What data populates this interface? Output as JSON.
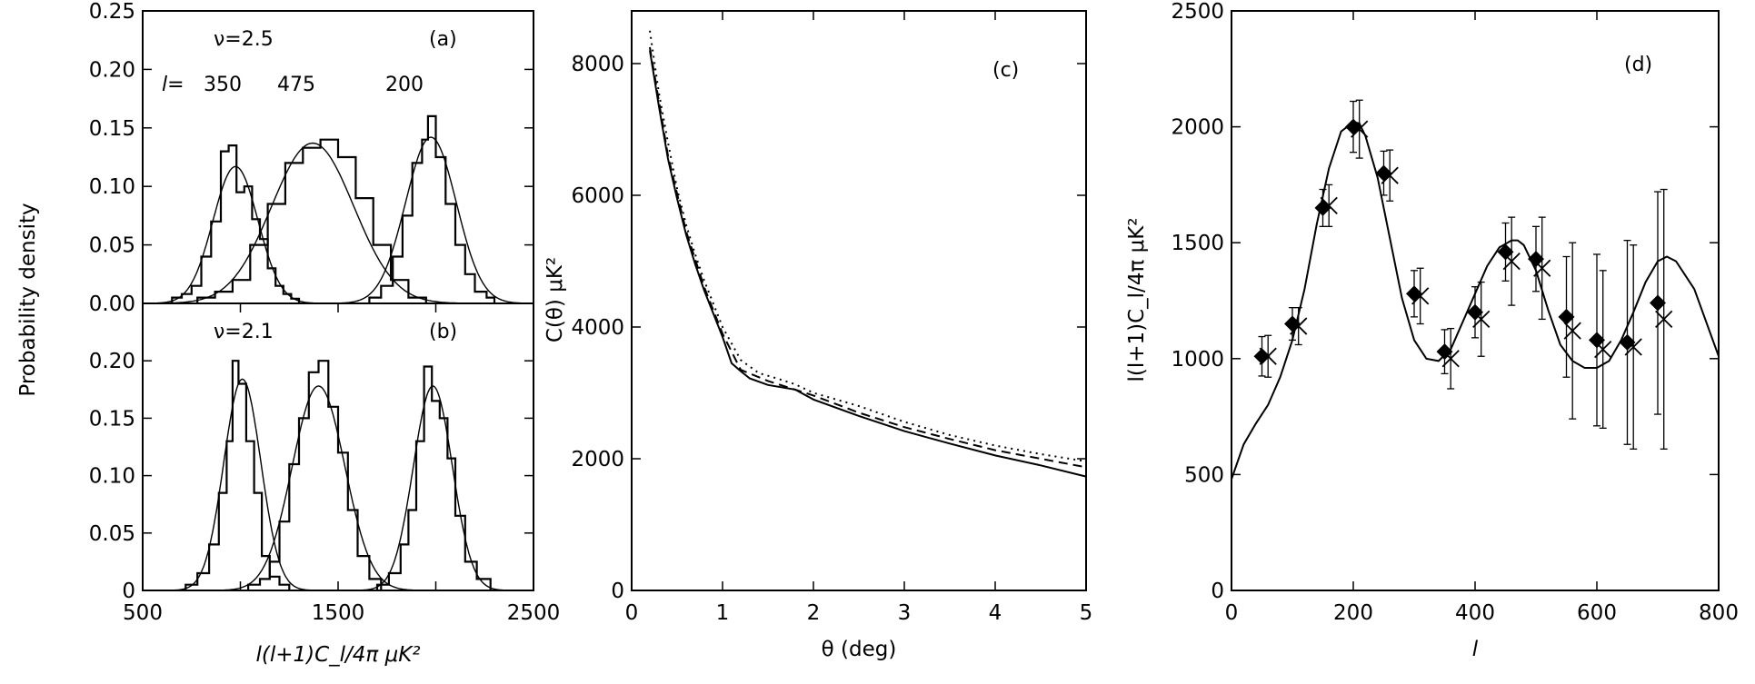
{
  "chart_data": [
    {
      "panel": "(a)",
      "type": "histogram",
      "annotations": {
        "nu": "ν=2.5",
        "l_prefix": "l=",
        "l_labels": [
          "350",
          "475",
          "200"
        ]
      },
      "ylabel": "Probability density",
      "xlim": [
        500,
        2500
      ],
      "ylim": [
        0,
        0.25
      ],
      "yticks": [
        "0.00",
        "0.05",
        "0.10",
        "0.15",
        "0.20",
        "0.25"
      ],
      "series": [
        {
          "name": "350",
          "mean": 975,
          "sigma": 115,
          "peak": 0.117,
          "bins": [
            [
              650,
              0.005
            ],
            [
              700,
              0.008
            ],
            [
              750,
              0.015
            ],
            [
              800,
              0.04
            ],
            [
              850,
              0.07
            ],
            [
              900,
              0.13
            ],
            [
              940,
              0.135
            ],
            [
              980,
              0.095
            ],
            [
              1020,
              0.1
            ],
            [
              1060,
              0.072
            ],
            [
              1100,
              0.055
            ],
            [
              1140,
              0.03
            ],
            [
              1180,
              0.015
            ],
            [
              1220,
              0.008
            ],
            [
              1260,
              0.004
            ],
            [
              1300,
              0.0
            ]
          ]
        },
        {
          "name": "475",
          "mean": 1370,
          "sigma": 210,
          "peak": 0.137,
          "bins": [
            [
              780,
              0.005
            ],
            [
              870,
              0.01
            ],
            [
              960,
              0.02
            ],
            [
              1050,
              0.05
            ],
            [
              1140,
              0.085
            ],
            [
              1230,
              0.12
            ],
            [
              1320,
              0.133
            ],
            [
              1410,
              0.14
            ],
            [
              1500,
              0.125
            ],
            [
              1590,
              0.09
            ],
            [
              1680,
              0.05
            ],
            [
              1770,
              0.02
            ],
            [
              1860,
              0.005
            ],
            [
              1950,
              0.0
            ]
          ]
        },
        {
          "name": "200",
          "mean": 1975,
          "sigma": 130,
          "peak": 0.142,
          "bins": [
            [
              1660,
              0.005
            ],
            [
              1720,
              0.015
            ],
            [
              1780,
              0.04
            ],
            [
              1830,
              0.075
            ],
            [
              1880,
              0.12
            ],
            [
              1930,
              0.14
            ],
            [
              1960,
              0.16
            ],
            [
              2000,
              0.125
            ],
            [
              2050,
              0.085
            ],
            [
              2100,
              0.05
            ],
            [
              2150,
              0.025
            ],
            [
              2200,
              0.01
            ],
            [
              2260,
              0.005
            ],
            [
              2300,
              0.0
            ]
          ]
        }
      ]
    },
    {
      "panel": "(b)",
      "type": "histogram",
      "annotations": {
        "nu": "ν=2.1"
      },
      "xlabel": "l(l+1)C_l/4π  μK²",
      "xlim": [
        500,
        2500
      ],
      "ylim": [
        0,
        0.25
      ],
      "xticks": [
        "500",
        "1500",
        "2500"
      ],
      "yticks": [
        "0",
        "0.05",
        "0.10",
        "0.15",
        "0.20"
      ],
      "series": [
        {
          "name": "350",
          "mean": 1010,
          "sigma": 95,
          "peak": 0.184,
          "bins": [
            [
              720,
              0.005
            ],
            [
              780,
              0.015
            ],
            [
              840,
              0.04
            ],
            [
              890,
              0.085
            ],
            [
              930,
              0.13
            ],
            [
              960,
              0.2
            ],
            [
              990,
              0.18
            ],
            [
              1030,
              0.13
            ],
            [
              1070,
              0.085
            ],
            [
              1110,
              0.03
            ],
            [
              1150,
              0.012
            ],
            [
              1200,
              0.005
            ],
            [
              1250,
              0.0
            ]
          ]
        },
        {
          "name": "475",
          "mean": 1400,
          "sigma": 135,
          "peak": 0.178,
          "bins": [
            [
              1040,
              0.005
            ],
            [
              1100,
              0.01
            ],
            [
              1150,
              0.025
            ],
            [
              1200,
              0.06
            ],
            [
              1250,
              0.11
            ],
            [
              1300,
              0.15
            ],
            [
              1350,
              0.19
            ],
            [
              1400,
              0.2
            ],
            [
              1450,
              0.16
            ],
            [
              1500,
              0.12
            ],
            [
              1550,
              0.07
            ],
            [
              1600,
              0.03
            ],
            [
              1660,
              0.01
            ],
            [
              1720,
              0.0
            ]
          ]
        },
        {
          "name": "200",
          "mean": 1985,
          "sigma": 100,
          "peak": 0.178,
          "bins": [
            [
              1700,
              0.005
            ],
            [
              1760,
              0.015
            ],
            [
              1820,
              0.04
            ],
            [
              1860,
              0.07
            ],
            [
              1900,
              0.13
            ],
            [
              1940,
              0.195
            ],
            [
              1980,
              0.165
            ],
            [
              2020,
              0.15
            ],
            [
              2060,
              0.115
            ],
            [
              2100,
              0.065
            ],
            [
              2150,
              0.025
            ],
            [
              2210,
              0.01
            ],
            [
              2280,
              0.0
            ]
          ]
        }
      ]
    },
    {
      "panel": "(c)",
      "type": "line",
      "xlabel": "θ (deg)",
      "ylabel": "C(θ)  μK²",
      "xlim": [
        0,
        5
      ],
      "ylim": [
        0,
        8800
      ],
      "xticks": [
        "0",
        "1",
        "2",
        "3",
        "4",
        "5"
      ],
      "yticks": [
        "0",
        "2000",
        "4000",
        "6000",
        "8000"
      ],
      "series": [
        {
          "name": "solid",
          "style": "solid",
          "x": [
            0.2,
            0.3,
            0.4,
            0.5,
            0.6,
            0.7,
            0.8,
            0.9,
            1.0,
            1.1,
            1.2,
            1.3,
            1.5,
            1.8,
            2.0,
            2.5,
            3.0,
            3.5,
            4.0,
            4.5,
            5.0
          ],
          "y": [
            8200,
            7350,
            6550,
            5950,
            5400,
            4950,
            4550,
            4200,
            3850,
            3450,
            3330,
            3220,
            3120,
            3050,
            2900,
            2650,
            2420,
            2230,
            2050,
            1900,
            1730
          ]
        },
        {
          "name": "dashed",
          "style": "dashed",
          "x": [
            0.2,
            0.4,
            0.6,
            0.8,
            1.0,
            1.2,
            1.5,
            2.0,
            2.5,
            3.0,
            3.5,
            4.0,
            4.5,
            5.0
          ],
          "y": [
            8250,
            6600,
            5450,
            4600,
            3900,
            3350,
            3180,
            2960,
            2700,
            2480,
            2300,
            2130,
            2000,
            1870
          ]
        },
        {
          "name": "dotted",
          "style": "dotted",
          "x": [
            0.2,
            0.3,
            0.4,
            0.5,
            0.6,
            0.7,
            0.8,
            0.9,
            1.0,
            1.2,
            1.4,
            1.6,
            1.8,
            2.0,
            2.5,
            3.0,
            3.5,
            4.0,
            4.5,
            5.0
          ],
          "y": [
            8500,
            7550,
            6800,
            6100,
            5550,
            5100,
            4700,
            4350,
            4000,
            3500,
            3300,
            3220,
            3130,
            3000,
            2800,
            2560,
            2360,
            2200,
            2070,
            1960
          ]
        }
      ]
    },
    {
      "panel": "(d)",
      "type": "scatter",
      "xlabel": "l",
      "ylabel": "l(l+1)C_l/4π  μK²",
      "xlim": [
        0,
        800
      ],
      "ylim": [
        0,
        2500
      ],
      "xticks": [
        "0",
        "200",
        "400",
        "600",
        "800"
      ],
      "yticks": [
        "0",
        "500",
        "1000",
        "1500",
        "2000",
        "2500"
      ],
      "curve": {
        "l": [
          0,
          20,
          40,
          60,
          80,
          100,
          120,
          140,
          160,
          180,
          200,
          210,
          220,
          240,
          260,
          280,
          300,
          320,
          340,
          360,
          380,
          400,
          420,
          440,
          460,
          470,
          480,
          500,
          520,
          540,
          560,
          580,
          600,
          620,
          640,
          660,
          680,
          700,
          715,
          730,
          760,
          800
        ],
        "value": [
          480,
          630,
          720,
          800,
          920,
          1080,
          1300,
          1580,
          1820,
          1980,
          2020,
          2015,
          1960,
          1780,
          1520,
          1260,
          1080,
          1000,
          990,
          1040,
          1160,
          1280,
          1400,
          1480,
          1510,
          1510,
          1490,
          1380,
          1210,
          1060,
          990,
          960,
          960,
          990,
          1080,
          1200,
          1330,
          1420,
          1440,
          1420,
          1300,
          1010
        ]
      },
      "diamonds": [
        {
          "l": 50,
          "value": 1010,
          "err": 85
        },
        {
          "l": 100,
          "value": 1150,
          "err": 70
        },
        {
          "l": 150,
          "value": 1650,
          "err": 80
        },
        {
          "l": 200,
          "value": 2000,
          "err": 110
        },
        {
          "l": 250,
          "value": 1800,
          "err": 95
        },
        {
          "l": 300,
          "value": 1280,
          "err": 100
        },
        {
          "l": 350,
          "value": 1030,
          "err": 95
        },
        {
          "l": 400,
          "value": 1200,
          "err": 110
        },
        {
          "l": 450,
          "value": 1460,
          "err": 125
        },
        {
          "l": 500,
          "value": 1430,
          "err": 140
        },
        {
          "l": 550,
          "value": 1180,
          "err": 260
        },
        {
          "l": 600,
          "value": 1080,
          "err": 370
        },
        {
          "l": 650,
          "value": 1070,
          "err": 440
        },
        {
          "l": 700,
          "value": 1240,
          "err": 480
        }
      ],
      "crosses": [
        {
          "l": 60,
          "value": 1010,
          "err": 90
        },
        {
          "l": 110,
          "value": 1140,
          "err": 80
        },
        {
          "l": 160,
          "value": 1660,
          "err": 90
        },
        {
          "l": 210,
          "value": 1990,
          "err": 125
        },
        {
          "l": 260,
          "value": 1790,
          "err": 110
        },
        {
          "l": 310,
          "value": 1270,
          "err": 120
        },
        {
          "l": 360,
          "value": 1000,
          "err": 130
        },
        {
          "l": 410,
          "value": 1170,
          "err": 160
        },
        {
          "l": 460,
          "value": 1420,
          "err": 190
        },
        {
          "l": 510,
          "value": 1390,
          "err": 220
        },
        {
          "l": 560,
          "value": 1120,
          "err": 380
        },
        {
          "l": 610,
          "value": 1040,
          "err": 340
        },
        {
          "l": 660,
          "value": 1050,
          "err": 440
        },
        {
          "l": 710,
          "value": 1170,
          "err": 560
        }
      ]
    }
  ]
}
